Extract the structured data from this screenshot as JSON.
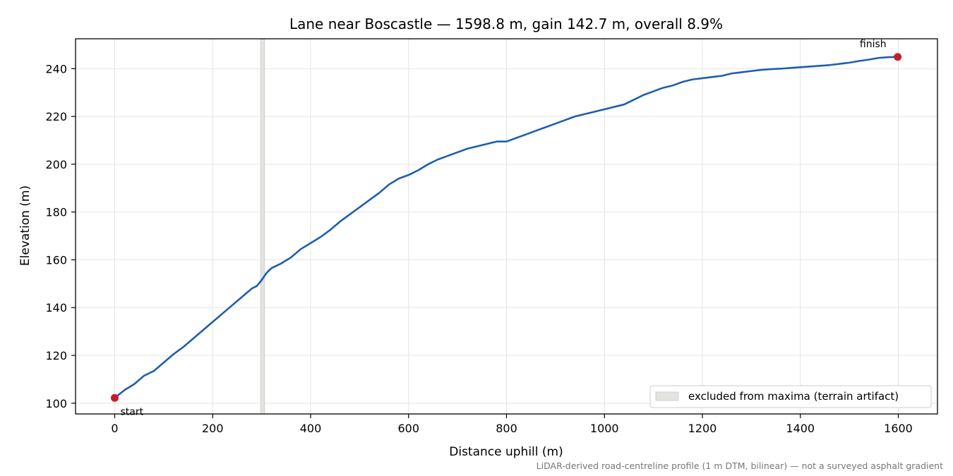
{
  "chart_data": {
    "type": "line",
    "title": "Lane near Boscastle — 1598.8 m, gain 142.7 m, overall 8.9%",
    "xlabel": "Distance uphill (m)",
    "ylabel": "Elevation (m)",
    "xlim": [
      -80,
      1680
    ],
    "ylim": [
      95.5,
      252.5
    ],
    "xticks": [
      0,
      200,
      400,
      600,
      800,
      1000,
      1200,
      1400,
      1600
    ],
    "yticks": [
      100,
      120,
      140,
      160,
      180,
      200,
      220,
      240
    ],
    "grid": true,
    "series": [
      {
        "color": "#1f5eaf",
        "x": [
          0,
          20,
          40,
          60,
          80,
          100,
          120,
          140,
          160,
          180,
          200,
          220,
          240,
          260,
          280,
          290,
          300,
          305,
          310,
          320,
          340,
          360,
          380,
          400,
          420,
          440,
          460,
          480,
          500,
          520,
          540,
          560,
          580,
          600,
          620,
          640,
          660,
          680,
          700,
          720,
          740,
          760,
          780,
          800,
          820,
          840,
          860,
          880,
          900,
          920,
          940,
          960,
          980,
          1000,
          1020,
          1040,
          1060,
          1080,
          1100,
          1120,
          1140,
          1160,
          1180,
          1200,
          1220,
          1240,
          1260,
          1280,
          1300,
          1320,
          1340,
          1360,
          1380,
          1400,
          1420,
          1440,
          1460,
          1480,
          1500,
          1520,
          1540,
          1560,
          1580,
          1598.8
        ],
        "y": [
          102.2,
          105.5,
          108.0,
          111.5,
          113.5,
          117.0,
          120.5,
          123.5,
          127.0,
          130.5,
          134.0,
          137.5,
          141.0,
          144.5,
          148.0,
          149.0,
          151.5,
          153.0,
          154.5,
          156.5,
          158.5,
          161.0,
          164.5,
          167.0,
          169.5,
          172.5,
          176.0,
          179.0,
          182.0,
          185.0,
          188.0,
          191.5,
          194.0,
          195.5,
          197.5,
          200.0,
          202.0,
          203.5,
          205.0,
          206.5,
          207.5,
          208.5,
          209.5,
          209.5,
          211.0,
          212.5,
          214.0,
          215.5,
          217.0,
          218.5,
          220.0,
          221.0,
          222.0,
          223.0,
          224.0,
          225.0,
          227.0,
          229.0,
          230.5,
          232.0,
          233.0,
          234.5,
          235.5,
          236.0,
          236.5,
          237.0,
          238.0,
          238.5,
          239.0,
          239.5,
          239.8,
          240.0,
          240.3,
          240.6,
          240.9,
          241.2,
          241.5,
          242.0,
          242.5,
          243.2,
          243.8,
          244.5,
          244.8,
          244.9
        ]
      }
    ],
    "excluded_band": [
      298,
      306
    ],
    "points": [
      {
        "x": 0,
        "y": 102.2,
        "label": "start",
        "color": "#c41e2a"
      },
      {
        "x": 1598.8,
        "y": 244.9,
        "label": "finish",
        "color": "#c41e2a"
      }
    ],
    "legend": {
      "placement": "lower-right",
      "entries": [
        "excluded from maxima (terrain artifact)"
      ]
    },
    "footnote": "LiDAR-derived road-centreline profile (1 m DTM, bilinear) — not a surveyed asphalt gradient"
  }
}
